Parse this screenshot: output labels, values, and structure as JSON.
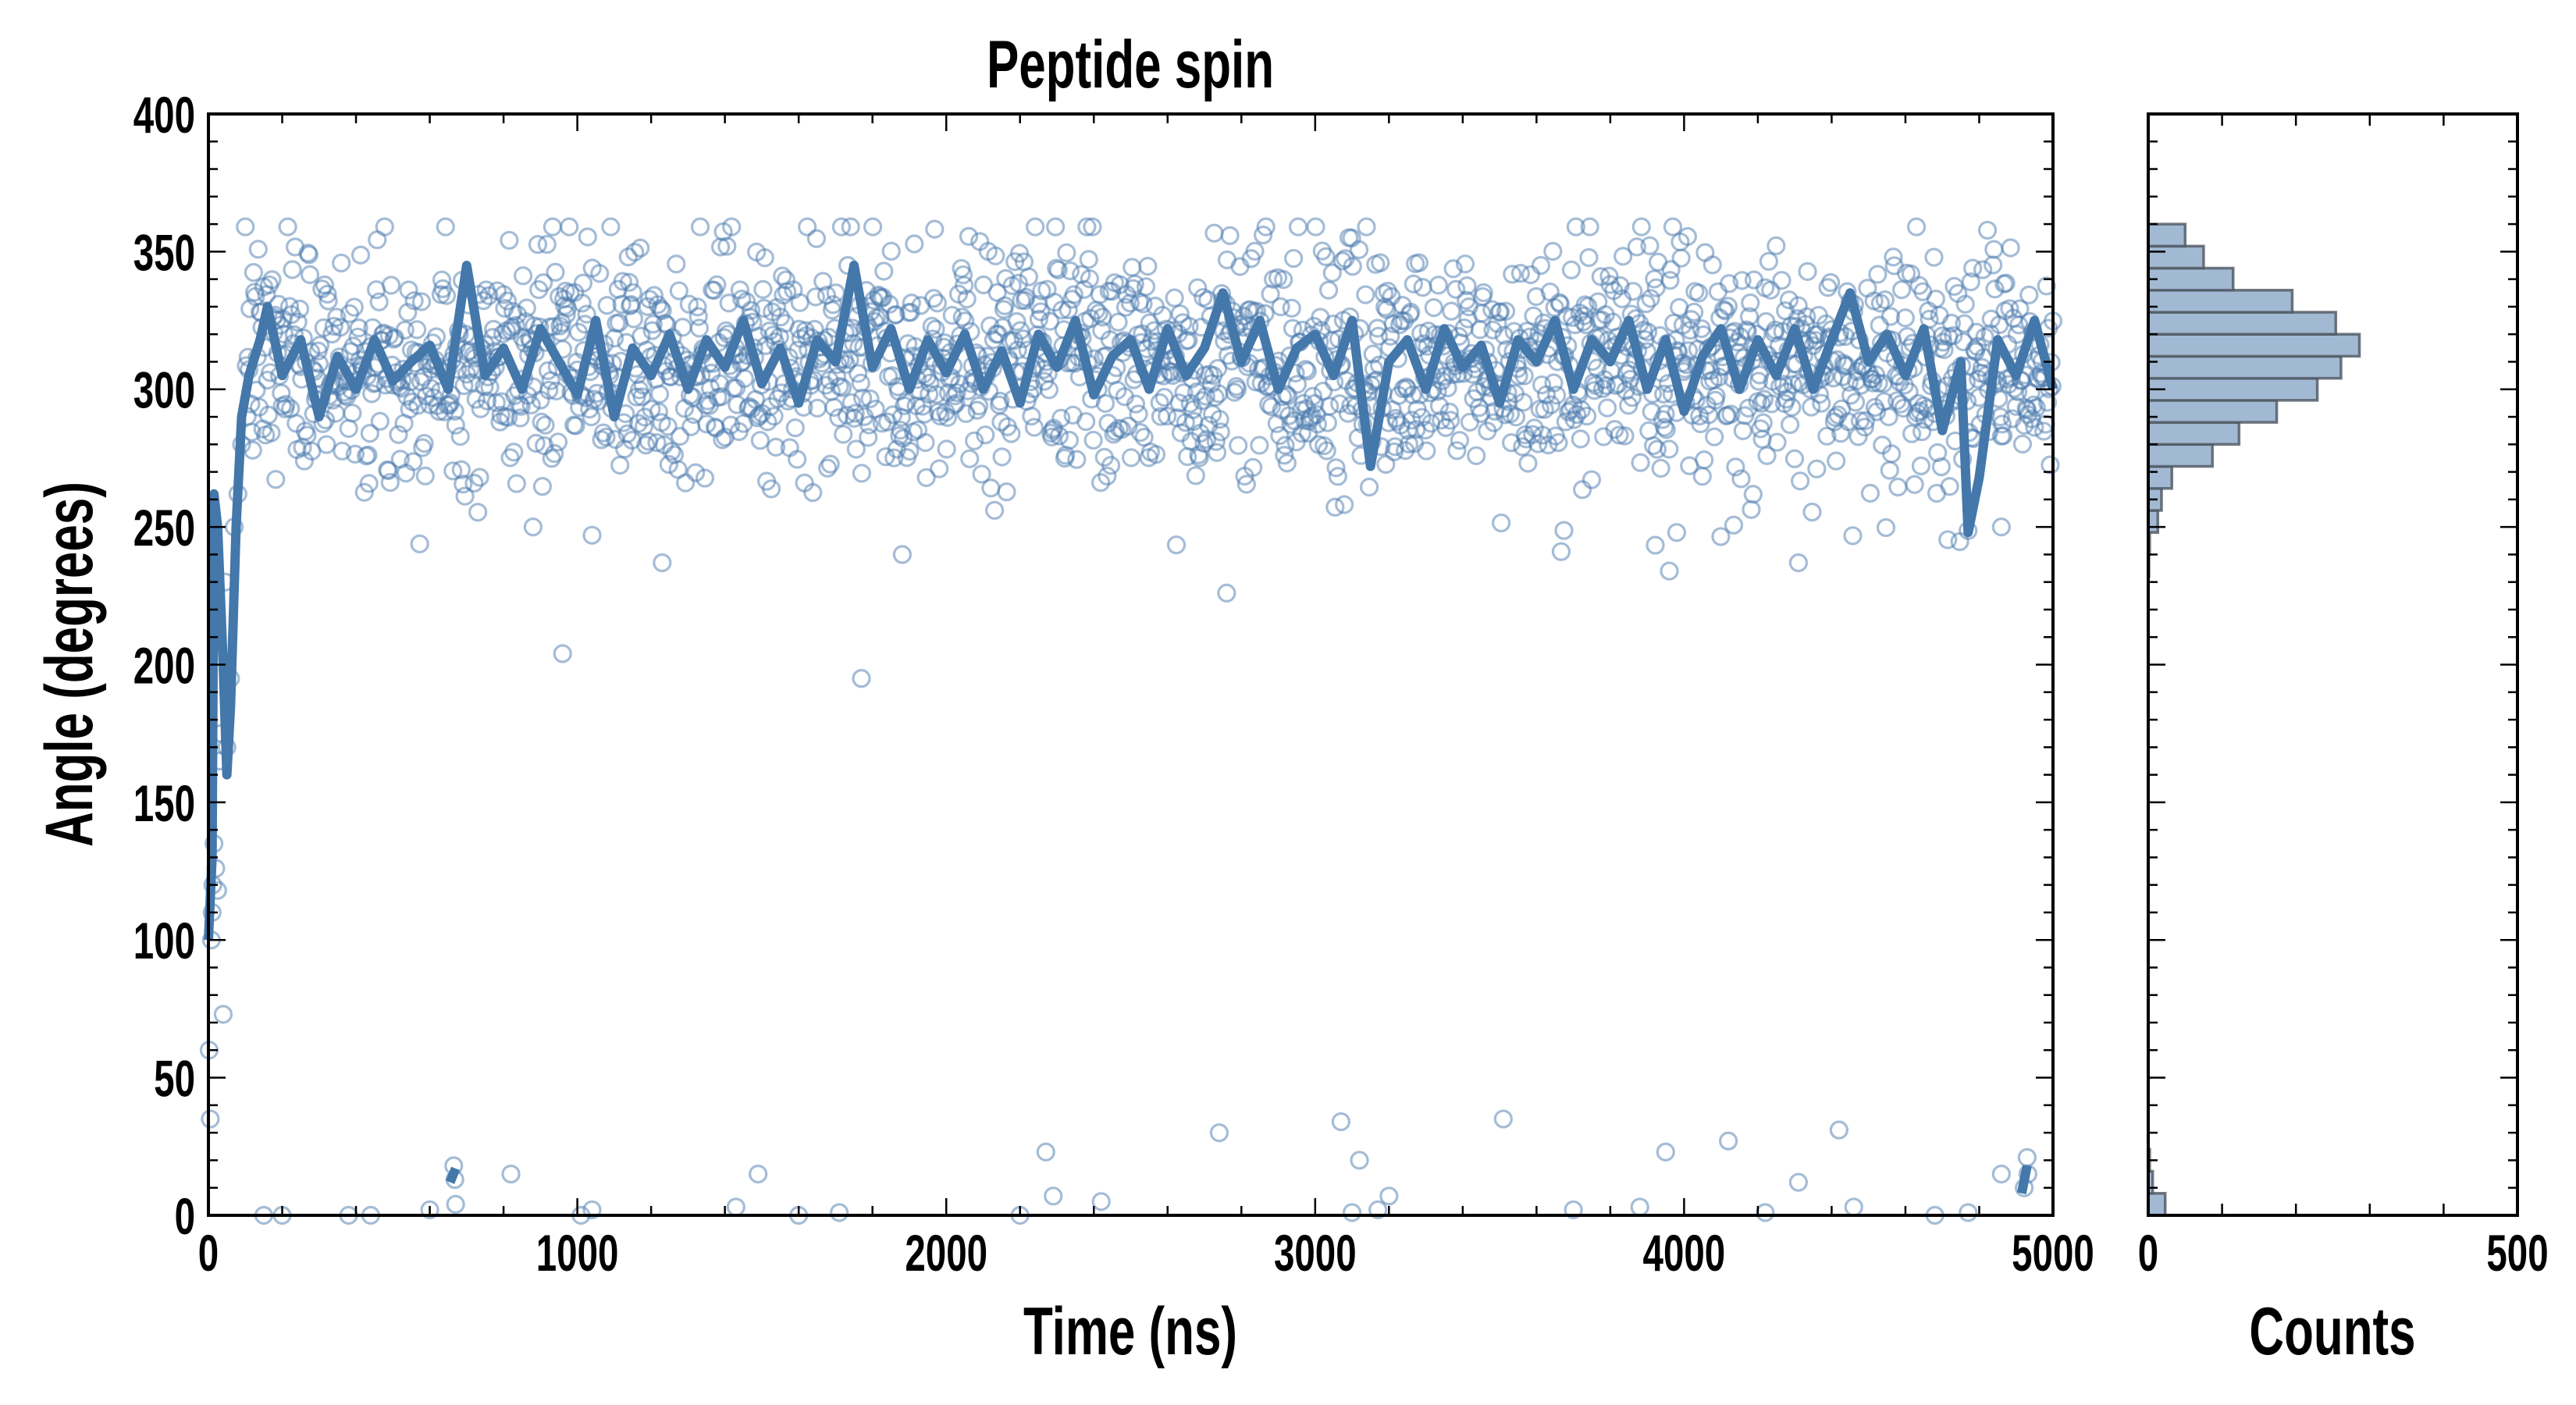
{
  "chart_data": [
    {
      "type": "scatter",
      "title": "Peptide spin",
      "xlabel": "Time (ns)",
      "ylabel": "Angle (degrees)",
      "xlim": [
        0,
        5000
      ],
      "ylim": [
        0,
        400
      ],
      "xticks": [
        "0",
        "1000",
        "2000",
        "3000",
        "4000",
        "5000"
      ],
      "yticks": [
        "0",
        "50",
        "100",
        "150",
        "200",
        "250",
        "300",
        "350",
        "400"
      ],
      "marker_color": "#4a79ad",
      "line_color": "#4477aa",
      "scatter_bulk": {
        "count": 1960,
        "t_start": 100,
        "t_end": 5000,
        "mean": 310,
        "sd": 21,
        "seed": 7
      },
      "scatter_points": [
        [
          2,
          60
        ],
        [
          5,
          35
        ],
        [
          8,
          100
        ],
        [
          10,
          110
        ],
        [
          12,
          120
        ],
        [
          15,
          135
        ],
        [
          20,
          126
        ],
        [
          25,
          118
        ],
        [
          30,
          165
        ],
        [
          35,
          175
        ],
        [
          40,
          73
        ],
        [
          45,
          230
        ],
        [
          50,
          170
        ],
        [
          60,
          195
        ],
        [
          70,
          250
        ],
        [
          80,
          262
        ],
        [
          90,
          280
        ],
        [
          960,
          204
        ],
        [
          1770,
          195
        ],
        [
          2760,
          226
        ],
        [
          1230,
          237
        ],
        [
          4310,
          237
        ],
        [
          3960,
          234
        ],
        [
          3980,
          248
        ],
        [
          4860,
          250
        ],
        [
          1040,
          247
        ],
        [
          880,
          250
        ],
        [
          665,
          18
        ],
        [
          668,
          13
        ],
        [
          670,
          4
        ],
        [
          820,
          15
        ],
        [
          1490,
          15
        ],
        [
          2270,
          23
        ],
        [
          2740,
          30
        ],
        [
          3070,
          34
        ],
        [
          3120,
          20
        ],
        [
          3510,
          35
        ],
        [
          3950,
          23
        ],
        [
          4120,
          27
        ],
        [
          4420,
          31
        ],
        [
          4310,
          12
        ],
        [
          4860,
          15
        ],
        [
          4930,
          21
        ],
        [
          4922,
          10
        ],
        [
          4932,
          15
        ],
        [
          1430,
          3
        ],
        [
          2290,
          7
        ],
        [
          2420,
          5
        ],
        [
          3200,
          7
        ],
        [
          1040,
          2
        ],
        [
          1010,
          0
        ],
        [
          150,
          0
        ],
        [
          200,
          0
        ],
        [
          380,
          0
        ],
        [
          440,
          0
        ],
        [
          600,
          2
        ],
        [
          1600,
          0
        ],
        [
          1710,
          1
        ],
        [
          2200,
          0
        ],
        [
          3700,
          2
        ],
        [
          3880,
          3
        ],
        [
          4220,
          1
        ],
        [
          4460,
          3
        ],
        [
          4680,
          0
        ],
        [
          4770,
          1
        ],
        [
          3170,
          2
        ],
        [
          3100,
          1
        ]
      ],
      "running_average": [
        {
          "x": [
            0,
            10,
            15,
            25,
            40,
            50,
            60,
            75,
            90,
            110,
            140,
            160,
            200,
            250,
            300,
            350,
            400,
            450,
            500,
            550,
            600,
            650,
            700,
            750,
            800,
            850,
            900,
            950,
            1000,
            1050,
            1100,
            1150,
            1200,
            1250,
            1300,
            1350,
            1400,
            1450,
            1500,
            1550,
            1600,
            1650,
            1700,
            1750,
            1800,
            1850,
            1900,
            1950,
            2000,
            2050,
            2100,
            2150,
            2200,
            2250,
            2300,
            2350,
            2400,
            2450,
            2500,
            2550,
            2600,
            2650,
            2700,
            2750,
            2800,
            2850,
            2900,
            2950,
            3000,
            3050,
            3100,
            3150,
            3200,
            3250,
            3300,
            3350,
            3400,
            3450,
            3500,
            3550,
            3600,
            3650,
            3700,
            3750,
            3800,
            3850,
            3900,
            3950,
            4000,
            4050,
            4100,
            4150,
            4200,
            4250,
            4300,
            4350,
            4400,
            4450,
            4500,
            4550,
            4600,
            4650,
            4700,
            4750,
            4770,
            4800,
            4850,
            4900,
            4950,
            5000
          ],
          "y": [
            100,
            130,
            262,
            250,
            200,
            160,
            185,
            250,
            290,
            305,
            318,
            330,
            305,
            318,
            290,
            312,
            300,
            318,
            303,
            310,
            316,
            300,
            345,
            305,
            315,
            300,
            322,
            310,
            298,
            325,
            290,
            315,
            305,
            320,
            300,
            318,
            308,
            325,
            302,
            315,
            295,
            318,
            310,
            345,
            308,
            322,
            300,
            318,
            306,
            320,
            300,
            314,
            295,
            320,
            308,
            325,
            298,
            312,
            318,
            300,
            322,
            305,
            315,
            335,
            310,
            325,
            300,
            315,
            320,
            305,
            325,
            272,
            310,
            318,
            300,
            322,
            308,
            316,
            295,
            318,
            310,
            325,
            300,
            318,
            310,
            325,
            300,
            318,
            292,
            312,
            322,
            300,
            318,
            305,
            322,
            300,
            318,
            335,
            310,
            320,
            305,
            322,
            285,
            310,
            248,
            268,
            318,
            305,
            325,
            300
          ]
        },
        {
          "x": [
            655,
            670
          ],
          "y": [
            12,
            17
          ]
        },
        {
          "x": [
            4915,
            4930
          ],
          "y": [
            8,
            18
          ]
        }
      ]
    },
    {
      "type": "bar",
      "orientation": "horizontal",
      "xlabel": "Counts",
      "xlim": [
        0,
        500
      ],
      "ylim": [
        0,
        400
      ],
      "xticks": [
        "0",
        "500"
      ],
      "fill_color": "#a2b9d3",
      "edge_color": "#4d5660",
      "bin_edges_low": [
        0,
        8,
        16,
        232,
        240,
        248,
        256,
        264,
        272,
        280,
        288,
        296,
        304,
        312,
        320,
        328,
        336,
        344,
        352
      ],
      "bin_width": 8,
      "counts": [
        23,
        6,
        2,
        1,
        2,
        13,
        18,
        32,
        87,
        123,
        174,
        229,
        261,
        286,
        254,
        195,
        115,
        75,
        50
      ]
    }
  ]
}
